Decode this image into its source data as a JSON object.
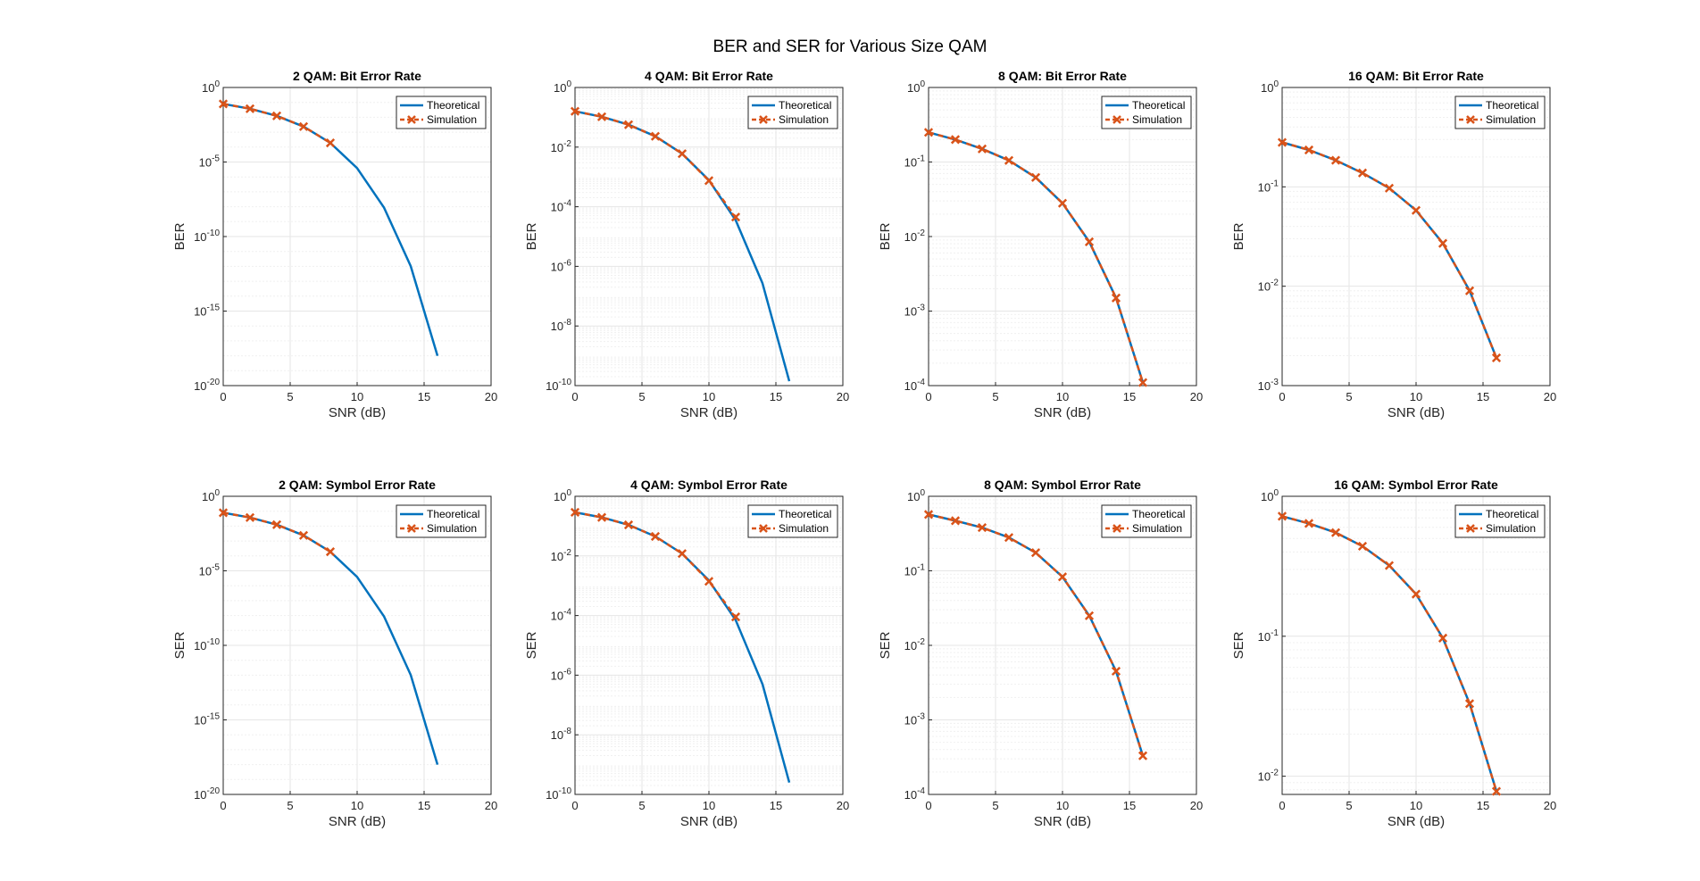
{
  "figure": {
    "title": "BER and SER for Various Size QAM"
  },
  "style": {
    "theoretical_color": "#0072BD",
    "simulation_color": "#D95319",
    "grid_color": "#e6e6e6"
  },
  "chart_data": [
    {
      "type": "line",
      "title": "2 QAM: Bit Error Rate",
      "xlabel": "SNR (dB)",
      "ylabel": "BER",
      "scale": "log",
      "xlim": [
        0,
        20
      ],
      "ylim_exp": [
        -20,
        0
      ],
      "xticks": [
        0,
        5,
        10,
        15,
        20
      ],
      "yticks_exp": [
        -20,
        -15,
        -10,
        -5,
        0
      ],
      "legend_position": "top-right",
      "series": [
        {
          "name": "Theoretical",
          "x": [
            0,
            2,
            4,
            6,
            8,
            10,
            12,
            14,
            16
          ],
          "y": [
            0.0786,
            0.0375,
            0.0125,
            0.00239,
            0.000191,
            3.87e-06,
            9e-09,
            1.04e-12,
            1e-18
          ]
        },
        {
          "name": "Simulation",
          "x": [
            0,
            2,
            4,
            6,
            8
          ],
          "y": [
            0.0786,
            0.0375,
            0.0125,
            0.00239,
            0.000191
          ]
        }
      ]
    },
    {
      "type": "line",
      "title": "4 QAM: Bit Error Rate",
      "xlabel": "SNR (dB)",
      "ylabel": "BER",
      "scale": "log",
      "xlim": [
        0,
        20
      ],
      "ylim_exp": [
        -10,
        0
      ],
      "xticks": [
        0,
        5,
        10,
        15,
        20
      ],
      "yticks_exp": [
        -10,
        -8,
        -6,
        -4,
        -2,
        0
      ],
      "legend_position": "top-right",
      "series": [
        {
          "name": "Theoretical",
          "x": [
            0,
            2,
            4,
            6,
            8,
            10,
            12,
            14,
            16
          ],
          "y": [
            0.159,
            0.104,
            0.0565,
            0.023,
            0.006,
            0.00078,
            3.5e-05,
            2.7e-07,
            1.4e-10
          ]
        },
        {
          "name": "Simulation",
          "x": [
            0,
            2,
            4,
            6,
            8,
            10,
            12
          ],
          "y": [
            0.159,
            0.104,
            0.0565,
            0.023,
            0.006,
            0.00075,
            4.5e-05
          ]
        }
      ]
    },
    {
      "type": "line",
      "title": "8 QAM: Bit Error Rate",
      "xlabel": "SNR (dB)",
      "ylabel": "BER",
      "scale": "log",
      "xlim": [
        0,
        20
      ],
      "ylim_exp": [
        -4,
        0
      ],
      "xticks": [
        0,
        5,
        10,
        15,
        20
      ],
      "yticks_exp": [
        -4,
        -3,
        -2,
        -1,
        0
      ],
      "legend_position": "top-right",
      "series": [
        {
          "name": "Theoretical",
          "x": [
            0,
            2,
            4,
            6,
            8,
            10,
            12,
            14,
            16
          ],
          "y": [
            0.25,
            0.2,
            0.15,
            0.105,
            0.062,
            0.028,
            0.0085,
            0.0015,
            0.00011
          ]
        },
        {
          "name": "Simulation",
          "x": [
            0,
            2,
            4,
            6,
            8,
            10,
            12,
            14,
            16
          ],
          "y": [
            0.25,
            0.2,
            0.15,
            0.105,
            0.062,
            0.028,
            0.0085,
            0.0015,
            0.00011
          ]
        }
      ]
    },
    {
      "type": "line",
      "title": "16 QAM: Bit Error Rate",
      "xlabel": "SNR (dB)",
      "ylabel": "BER",
      "scale": "log",
      "xlim": [
        0,
        20
      ],
      "ylim_exp": [
        -3,
        0
      ],
      "xticks": [
        0,
        5,
        10,
        15,
        20
      ],
      "yticks_exp": [
        -3,
        -2,
        -1,
        0
      ],
      "legend_position": "top-right",
      "series": [
        {
          "name": "Theoretical",
          "x": [
            0,
            2,
            4,
            6,
            8,
            10,
            12,
            14,
            16
          ],
          "y": [
            0.28,
            0.235,
            0.185,
            0.138,
            0.097,
            0.058,
            0.027,
            0.009,
            0.0019
          ]
        },
        {
          "name": "Simulation",
          "x": [
            0,
            2,
            4,
            6,
            8,
            10,
            12,
            14,
            16
          ],
          "y": [
            0.28,
            0.235,
            0.185,
            0.138,
            0.097,
            0.058,
            0.027,
            0.009,
            0.0019
          ]
        }
      ]
    },
    {
      "type": "line",
      "title": "2 QAM: Symbol Error Rate",
      "xlabel": "SNR (dB)",
      "ylabel": "SER",
      "scale": "log",
      "xlim": [
        0,
        20
      ],
      "ylim_exp": [
        -20,
        0
      ],
      "xticks": [
        0,
        5,
        10,
        15,
        20
      ],
      "yticks_exp": [
        -20,
        -15,
        -10,
        -5,
        0
      ],
      "legend_position": "top-right",
      "series": [
        {
          "name": "Theoretical",
          "x": [
            0,
            2,
            4,
            6,
            8,
            10,
            12,
            14,
            16
          ],
          "y": [
            0.0786,
            0.0375,
            0.0125,
            0.00239,
            0.000191,
            3.87e-06,
            9e-09,
            1.04e-12,
            1e-18
          ]
        },
        {
          "name": "Simulation",
          "x": [
            0,
            2,
            4,
            6,
            8
          ],
          "y": [
            0.0786,
            0.0375,
            0.0125,
            0.00239,
            0.000191
          ]
        }
      ]
    },
    {
      "type": "line",
      "title": "4 QAM: Symbol Error Rate",
      "xlabel": "SNR (dB)",
      "ylabel": "SER",
      "scale": "log",
      "xlim": [
        0,
        20
      ],
      "ylim_exp": [
        -10,
        0
      ],
      "xticks": [
        0,
        5,
        10,
        15,
        20
      ],
      "yticks_exp": [
        -10,
        -8,
        -6,
        -4,
        -2,
        0
      ],
      "legend_position": "top-right",
      "series": [
        {
          "name": "Theoretical",
          "x": [
            0,
            2,
            4,
            6,
            8,
            10,
            12,
            14,
            16
          ],
          "y": [
            0.29,
            0.196,
            0.11,
            0.045,
            0.012,
            0.0015,
            7e-05,
            5e-07,
            2.5e-10
          ]
        },
        {
          "name": "Simulation",
          "x": [
            0,
            2,
            4,
            6,
            8,
            10,
            12
          ],
          "y": [
            0.29,
            0.196,
            0.11,
            0.045,
            0.012,
            0.0014,
            9e-05
          ]
        }
      ]
    },
    {
      "type": "line",
      "title": "8 QAM: Symbol Error Rate",
      "xlabel": "SNR (dB)",
      "ylabel": "SER",
      "scale": "log",
      "xlim": [
        0,
        20
      ],
      "ylim_exp": [
        -4,
        0
      ],
      "xticks": [
        0,
        5,
        10,
        15,
        20
      ],
      "yticks_exp": [
        -4,
        -3,
        -2,
        -1,
        0
      ],
      "legend_position": "top-right",
      "series": [
        {
          "name": "Theoretical",
          "x": [
            0,
            2,
            4,
            6,
            8,
            10,
            12,
            14,
            16
          ],
          "y": [
            0.57,
            0.47,
            0.38,
            0.28,
            0.175,
            0.083,
            0.025,
            0.0045,
            0.00033
          ]
        },
        {
          "name": "Simulation",
          "x": [
            0,
            2,
            4,
            6,
            8,
            10,
            12,
            14,
            16
          ],
          "y": [
            0.57,
            0.47,
            0.38,
            0.28,
            0.175,
            0.083,
            0.025,
            0.0045,
            0.00033
          ]
        }
      ]
    },
    {
      "type": "line",
      "title": "16 QAM: Symbol Error Rate",
      "xlabel": "SNR (dB)",
      "ylabel": "SER",
      "scale": "log",
      "xlim": [
        0,
        20
      ],
      "ylim_exp": [
        -2.13,
        0
      ],
      "xticks": [
        0,
        5,
        10,
        15,
        20
      ],
      "yticks_exp": [
        -2,
        -1,
        0
      ],
      "legend_position": "top-right",
      "series": [
        {
          "name": "Theoretical",
          "x": [
            0,
            2,
            4,
            6,
            8,
            10,
            12,
            14,
            16
          ],
          "y": [
            0.72,
            0.64,
            0.55,
            0.44,
            0.32,
            0.2,
            0.097,
            0.033,
            0.0078
          ]
        },
        {
          "name": "Simulation",
          "x": [
            0,
            2,
            4,
            6,
            8,
            10,
            12,
            14,
            16
          ],
          "y": [
            0.72,
            0.64,
            0.55,
            0.44,
            0.32,
            0.2,
            0.097,
            0.033,
            0.0078
          ]
        }
      ]
    }
  ]
}
